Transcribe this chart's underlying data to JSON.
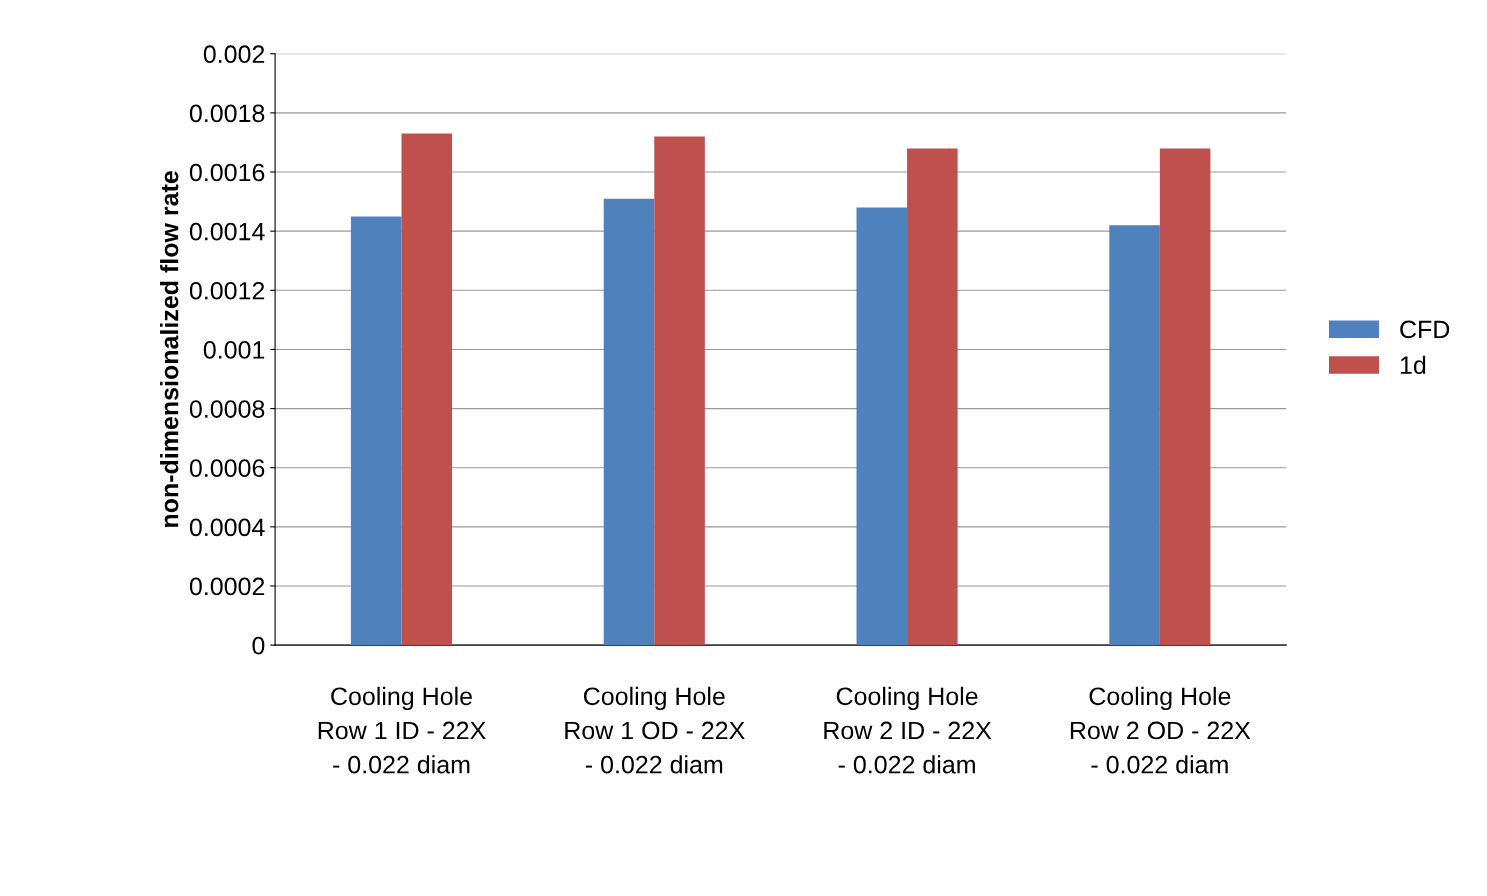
{
  "chart_data": {
    "type": "bar",
    "ylabel": "non-dimensionalized flow rate",
    "categories": [
      "Cooling Hole Row 1 ID - 22X - 0.022 diam",
      "Cooling Hole Row 1 OD - 22X - 0.022 diam",
      "Cooling Hole Row 2 ID - 22X - 0.022 diam",
      "Cooling Hole Row 2 OD - 22X - 0.022 diam"
    ],
    "series": [
      {
        "name": "CFD",
        "color": "#4f81bd",
        "values": [
          0.00145,
          0.00151,
          0.00148,
          0.00142
        ]
      },
      {
        "name": "1d",
        "color": "#c0504d",
        "values": [
          0.00173,
          0.00172,
          0.00168,
          0.00168
        ]
      }
    ],
    "ylim": [
      0,
      0.002
    ],
    "yticks": [
      0,
      0.0002,
      0.0004,
      0.0006,
      0.0008,
      0.001,
      0.0012,
      0.0014,
      0.0016,
      0.0018,
      0.002
    ],
    "grid": "y",
    "legend": "right"
  }
}
